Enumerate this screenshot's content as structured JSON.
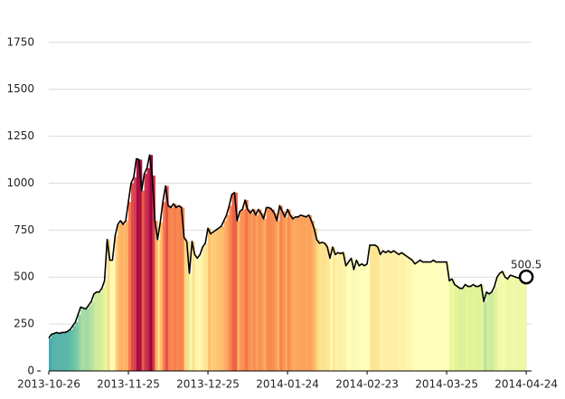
{
  "chart_data": {
    "type": "line",
    "x": [
      "2013-10-26",
      "2013-10-27",
      "2013-10-28",
      "2013-10-29",
      "2013-10-30",
      "2013-10-31",
      "2013-11-01",
      "2013-11-02",
      "2013-11-03",
      "2013-11-04",
      "2013-11-05",
      "2013-11-06",
      "2013-11-07",
      "2013-11-08",
      "2013-11-09",
      "2013-11-10",
      "2013-11-11",
      "2013-11-12",
      "2013-11-13",
      "2013-11-14",
      "2013-11-15",
      "2013-11-16",
      "2013-11-17",
      "2013-11-18",
      "2013-11-19",
      "2013-11-20",
      "2013-11-21",
      "2013-11-22",
      "2013-11-23",
      "2013-11-24",
      "2013-11-25",
      "2013-11-26",
      "2013-11-27",
      "2013-11-28",
      "2013-11-29",
      "2013-11-30",
      "2013-12-01",
      "2013-12-02",
      "2013-12-03",
      "2013-12-04",
      "2013-12-05",
      "2013-12-06",
      "2013-12-07",
      "2013-12-08",
      "2013-12-09",
      "2013-12-10",
      "2013-12-11",
      "2013-12-12",
      "2013-12-13",
      "2013-12-14",
      "2013-12-15",
      "2013-12-16",
      "2013-12-17",
      "2013-12-18",
      "2013-12-19",
      "2013-12-20",
      "2013-12-21",
      "2013-12-22",
      "2013-12-23",
      "2013-12-24",
      "2013-12-25",
      "2013-12-26",
      "2013-12-27",
      "2013-12-28",
      "2013-12-29",
      "2013-12-30",
      "2013-12-31",
      "2014-01-01",
      "2014-01-02",
      "2014-01-03",
      "2014-01-04",
      "2014-01-05",
      "2014-01-06",
      "2014-01-07",
      "2014-01-08",
      "2014-01-09",
      "2014-01-10",
      "2014-01-11",
      "2014-01-12",
      "2014-01-13",
      "2014-01-14",
      "2014-01-15",
      "2014-01-16",
      "2014-01-17",
      "2014-01-18",
      "2014-01-19",
      "2014-01-20",
      "2014-01-21",
      "2014-01-22",
      "2014-01-23",
      "2014-01-24",
      "2014-01-25",
      "2014-01-26",
      "2014-01-27",
      "2014-01-28",
      "2014-01-29",
      "2014-01-30",
      "2014-01-31",
      "2014-02-01",
      "2014-02-02",
      "2014-02-03",
      "2014-02-04",
      "2014-02-05",
      "2014-02-06",
      "2014-02-07",
      "2014-02-08",
      "2014-02-09",
      "2014-02-10",
      "2014-02-11",
      "2014-02-12",
      "2014-02-13",
      "2014-02-14",
      "2014-02-15",
      "2014-02-16",
      "2014-02-17",
      "2014-02-18",
      "2014-02-19",
      "2014-02-20",
      "2014-02-21",
      "2014-02-22",
      "2014-02-23",
      "2014-02-24",
      "2014-02-25",
      "2014-02-26",
      "2014-02-27",
      "2014-02-28",
      "2014-03-01",
      "2014-03-02",
      "2014-03-03",
      "2014-03-04",
      "2014-03-05",
      "2014-03-06",
      "2014-03-07",
      "2014-03-08",
      "2014-03-09",
      "2014-03-10",
      "2014-03-11",
      "2014-03-12",
      "2014-03-13",
      "2014-03-14",
      "2014-03-15",
      "2014-03-16",
      "2014-03-17",
      "2014-03-18",
      "2014-03-19",
      "2014-03-20",
      "2014-03-21",
      "2014-03-22",
      "2014-03-23",
      "2014-03-24",
      "2014-03-25",
      "2014-03-26",
      "2014-03-27",
      "2014-03-28",
      "2014-03-29",
      "2014-03-30",
      "2014-03-31",
      "2014-04-01",
      "2014-04-02",
      "2014-04-03",
      "2014-04-04",
      "2014-04-05",
      "2014-04-06",
      "2014-04-07",
      "2014-04-08",
      "2014-04-09",
      "2014-04-10",
      "2014-04-11",
      "2014-04-12",
      "2014-04-13",
      "2014-04-14",
      "2014-04-15",
      "2014-04-16",
      "2014-04-17",
      "2014-04-18",
      "2014-04-19",
      "2014-04-20",
      "2014-04-21",
      "2014-04-22",
      "2014-04-23",
      "2014-04-24"
    ],
    "values": [
      175,
      195,
      200,
      205,
      200,
      205,
      205,
      210,
      220,
      240,
      260,
      300,
      340,
      335,
      330,
      350,
      370,
      410,
      420,
      420,
      440,
      480,
      700,
      590,
      590,
      720,
      780,
      800,
      780,
      800,
      900,
      1000,
      1030,
      1130,
      1125,
      960,
      1050,
      1080,
      1150,
      1040,
      800,
      700,
      790,
      900,
      985,
      880,
      870,
      890,
      870,
      880,
      870,
      710,
      690,
      520,
      690,
      620,
      600,
      620,
      660,
      680,
      760,
      730,
      740,
      750,
      760,
      770,
      800,
      830,
      880,
      940,
      950,
      800,
      850,
      860,
      910,
      860,
      840,
      860,
      830,
      860,
      840,
      810,
      870,
      870,
      860,
      840,
      800,
      880,
      850,
      820,
      860,
      830,
      810,
      820,
      820,
      830,
      825,
      820,
      830,
      800,
      760,
      700,
      680,
      685,
      680,
      660,
      600,
      660,
      620,
      630,
      625,
      630,
      560,
      580,
      600,
      540,
      590,
      560,
      570,
      560,
      570,
      670,
      670,
      670,
      660,
      620,
      640,
      630,
      640,
      630,
      640,
      630,
      620,
      630,
      620,
      610,
      600,
      590,
      570,
      580,
      590,
      580,
      580,
      580,
      580,
      590,
      580,
      580,
      580,
      580,
      580,
      480,
      490,
      460,
      450,
      440,
      440,
      460,
      450,
      450,
      460,
      450,
      450,
      460,
      370,
      420,
      410,
      420,
      450,
      500,
      520,
      530,
      500,
      490,
      510,
      505,
      500,
      495,
      500,
      498,
      500.5
    ],
    "line_color": "#000000",
    "colormap": [
      "#5e4fa2",
      "#3288bd",
      "#66c2a5",
      "#abdda4",
      "#e6f598",
      "#ffffbf",
      "#fee08b",
      "#fdae61",
      "#f46d43",
      "#d53e4f",
      "#9e0142"
    ],
    "xlim": [
      "2013-10-26",
      "2014-04-26"
    ],
    "xticks": [
      "2013-10-26",
      "2013-11-25",
      "2013-12-25",
      "2014-01-24",
      "2014-02-23",
      "2014-03-25",
      "2014-04-24"
    ],
    "ylim": [
      0,
      1850
    ],
    "yticks": [
      0,
      250,
      500,
      750,
      1000,
      1250,
      1500,
      1750
    ],
    "grid": true
  }
}
